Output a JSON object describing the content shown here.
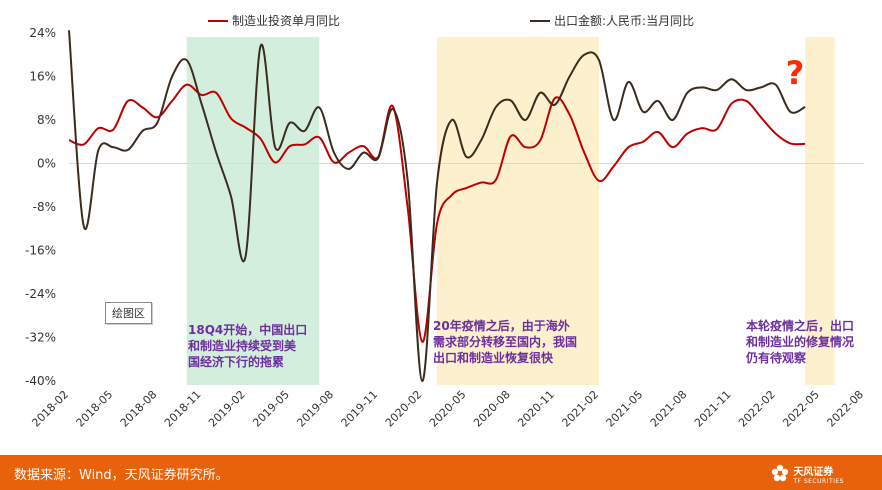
{
  "chart_data": {
    "type": "line",
    "series": [
      {
        "name": "制造业投资单月同比",
        "color": "#c00000",
        "points": [
          [
            "2018-02",
            4.3
          ],
          [
            "2018-03",
            3.5
          ],
          [
            "2018-04",
            6.5
          ],
          [
            "2018-05",
            6.2
          ],
          [
            "2018-06",
            11.5
          ],
          [
            "2018-07",
            10.3
          ],
          [
            "2018-08",
            8.5
          ],
          [
            "2018-09",
            11.5
          ],
          [
            "2018-10",
            14.5
          ],
          [
            "2018-11",
            12.6
          ],
          [
            "2018-12",
            13.0
          ],
          [
            "2019-01",
            8.3
          ],
          [
            "2019-02",
            6.6
          ],
          [
            "2019-03",
            4.6
          ],
          [
            "2019-04",
            0.2
          ],
          [
            "2019-05",
            3.2
          ],
          [
            "2019-06",
            3.5
          ],
          [
            "2019-07",
            4.8
          ],
          [
            "2019-08",
            0.2
          ],
          [
            "2019-09",
            2.0
          ],
          [
            "2019-10",
            3.2
          ],
          [
            "2019-11",
            1.2
          ],
          [
            "2019-12",
            10.5
          ],
          [
            "2020-01",
            -8.0
          ],
          [
            "2020-02",
            -32.8
          ],
          [
            "2020-03",
            -11.0
          ],
          [
            "2020-04",
            -5.8
          ],
          [
            "2020-05",
            -4.5
          ],
          [
            "2020-06",
            -3.5
          ],
          [
            "2020-07",
            -3.0
          ],
          [
            "2020-08",
            5.0
          ],
          [
            "2020-09",
            3.0
          ],
          [
            "2020-10",
            4.2
          ],
          [
            "2020-11",
            12.0
          ],
          [
            "2020-12",
            9.0
          ],
          [
            "2021-01",
            2.0
          ],
          [
            "2021-02",
            -3.2
          ],
          [
            "2021-03",
            -0.5
          ],
          [
            "2021-04",
            3.0
          ],
          [
            "2021-05",
            4.0
          ],
          [
            "2021-06",
            5.8
          ],
          [
            "2021-07",
            3.0
          ],
          [
            "2021-08",
            5.5
          ],
          [
            "2021-09",
            6.5
          ],
          [
            "2021-10",
            6.3
          ],
          [
            "2021-11",
            11.0
          ],
          [
            "2021-12",
            11.5
          ],
          [
            "2022-01",
            8.5
          ],
          [
            "2022-02",
            5.5
          ],
          [
            "2022-03",
            3.7
          ],
          [
            "2022-04",
            3.6
          ]
        ]
      },
      {
        "name": "出口金额:人民币:当月同比",
        "color": "#3a2c1e",
        "points": [
          [
            "2018-02",
            24.5
          ],
          [
            "2018-03",
            -11.5
          ],
          [
            "2018-04",
            2.5
          ],
          [
            "2018-05",
            3.0
          ],
          [
            "2018-06",
            2.5
          ],
          [
            "2018-07",
            6.0
          ],
          [
            "2018-08",
            7.5
          ],
          [
            "2018-09",
            16.0
          ],
          [
            "2018-10",
            19.0
          ],
          [
            "2018-11",
            11.0
          ],
          [
            "2018-12",
            2.0
          ],
          [
            "2019-01",
            -6.0
          ],
          [
            "2019-02",
            -17.0
          ],
          [
            "2019-03",
            21.5
          ],
          [
            "2019-04",
            3.0
          ],
          [
            "2019-05",
            7.5
          ],
          [
            "2019-06",
            6.0
          ],
          [
            "2019-07",
            10.3
          ],
          [
            "2019-08",
            2.0
          ],
          [
            "2019-09",
            -1.0
          ],
          [
            "2019-10",
            2.0
          ],
          [
            "2019-11",
            1.0
          ],
          [
            "2019-12",
            10.0
          ],
          [
            "2020-01",
            -3.0
          ],
          [
            "2020-02",
            -40.0
          ],
          [
            "2020-03",
            -3.5
          ],
          [
            "2020-04",
            8.0
          ],
          [
            "2020-05",
            1.2
          ],
          [
            "2020-06",
            4.3
          ],
          [
            "2020-07",
            10.4
          ],
          [
            "2020-08",
            11.6
          ],
          [
            "2020-09",
            8.0
          ],
          [
            "2020-10",
            13.0
          ],
          [
            "2020-11",
            10.8
          ],
          [
            "2020-12",
            16.0
          ],
          [
            "2021-01",
            20.0
          ],
          [
            "2021-02",
            19.0
          ],
          [
            "2021-03",
            8.0
          ],
          [
            "2021-04",
            15.0
          ],
          [
            "2021-05",
            9.5
          ],
          [
            "2021-06",
            11.5
          ],
          [
            "2021-07",
            8.0
          ],
          [
            "2021-08",
            13.0
          ],
          [
            "2021-09",
            14.0
          ],
          [
            "2021-10",
            13.5
          ],
          [
            "2021-11",
            15.5
          ],
          [
            "2021-12",
            13.5
          ],
          [
            "2022-01",
            14.0
          ],
          [
            "2022-02",
            14.5
          ],
          [
            "2022-03",
            9.5
          ],
          [
            "2022-04",
            10.4
          ]
        ]
      }
    ],
    "x_ticks": [
      "2018-02",
      "2018-05",
      "2018-08",
      "2018-11",
      "2019-02",
      "2019-05",
      "2019-08",
      "2019-11",
      "2020-02",
      "2020-05",
      "2020-08",
      "2020-11",
      "2021-02",
      "2021-05",
      "2021-08",
      "2021-11",
      "2022-02",
      "2022-05",
      "2022-08"
    ],
    "y_ticks": [
      "24%",
      "16%",
      "8%",
      "0%",
      "-8%",
      "-16%",
      "-24%",
      "-32%",
      "-40%"
    ],
    "ylim": [
      -40,
      24
    ],
    "xlim": [
      "2018-02",
      "2022-08"
    ],
    "grid": false,
    "legend_position": "top",
    "shaded_regions": [
      {
        "start": "2018-10",
        "end": "2019-07",
        "color": "#d4eedd"
      },
      {
        "start": "2020-03",
        "end": "2021-02",
        "color": "#fdf0cc"
      },
      {
        "start": "2022-04",
        "end": "2022-06",
        "color": "#fdf0cc"
      }
    ],
    "annotations": [
      {
        "lines": [
          "18Q4开始，中国出口",
          "和制造业持续受到美",
          "国经济下行的拖累"
        ]
      },
      {
        "lines": [
          "20年疫情之后，由于海外",
          "需求部分转移至国内，我国",
          "出口和制造业恢复很快"
        ]
      },
      {
        "lines": [
          "本轮疫情之后，出口",
          "和制造业的修复情况",
          "仍有待观察"
        ]
      }
    ],
    "question_mark": "?",
    "plot_area_label": "绘图区"
  },
  "footer": {
    "source": "数据来源：Wind，天风证券研究所。",
    "brand_name": "天风证券",
    "brand_sub": "TF SECURITIES"
  }
}
